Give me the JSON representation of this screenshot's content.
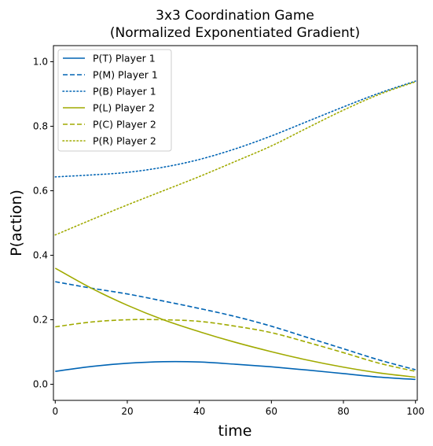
{
  "chart_data": {
    "type": "line",
    "title": "3x3 Coordination Game",
    "subtitle": "(Normalized Exponentiated Gradient)",
    "xlabel": "time",
    "ylabel": "P(action)",
    "xlim": [
      -0.5,
      100.5
    ],
    "ylim": [
      -0.05,
      1.05
    ],
    "xticks": [
      0,
      20,
      40,
      60,
      80,
      100
    ],
    "yticks": [
      0.0,
      0.2,
      0.4,
      0.6,
      0.8,
      1.0
    ],
    "xtick_labels": [
      "0",
      "20",
      "40",
      "60",
      "80",
      "100"
    ],
    "ytick_labels": [
      "0.0",
      "0.2",
      "0.4",
      "0.6",
      "0.8",
      "1.0"
    ],
    "grid": false,
    "legend_position": "top-left",
    "x": [
      0,
      10,
      20,
      30,
      40,
      50,
      60,
      70,
      80,
      90,
      100
    ],
    "series": [
      {
        "name": "P(T) Player 1",
        "color": "#0064b4",
        "dash": "solid",
        "values": [
          0.04,
          0.055,
          0.065,
          0.07,
          0.069,
          0.062,
          0.054,
          0.044,
          0.033,
          0.022,
          0.015
        ]
      },
      {
        "name": "P(M) Player 1",
        "color": "#0064b4",
        "dash": "dashed",
        "values": [
          0.318,
          0.298,
          0.28,
          0.258,
          0.235,
          0.21,
          0.18,
          0.145,
          0.11,
          0.075,
          0.045
        ]
      },
      {
        "name": "P(B) Player 1",
        "color": "#0064b4",
        "dash": "dotted",
        "values": [
          0.643,
          0.649,
          0.657,
          0.673,
          0.697,
          0.73,
          0.77,
          0.815,
          0.86,
          0.903,
          0.94
        ]
      },
      {
        "name": "P(L) Player 2",
        "color": "#a0aa00",
        "dash": "solid",
        "values": [
          0.36,
          0.298,
          0.245,
          0.2,
          0.163,
          0.13,
          0.101,
          0.075,
          0.053,
          0.035,
          0.022
        ]
      },
      {
        "name": "P(C) Player 2",
        "color": "#a0aa00",
        "dash": "dashed",
        "values": [
          0.178,
          0.193,
          0.2,
          0.2,
          0.195,
          0.18,
          0.16,
          0.13,
          0.098,
          0.065,
          0.04
        ]
      },
      {
        "name": "P(R) Player 2",
        "color": "#a0aa00",
        "dash": "dotted",
        "values": [
          0.463,
          0.51,
          0.556,
          0.6,
          0.644,
          0.691,
          0.739,
          0.795,
          0.85,
          0.899,
          0.938
        ]
      }
    ]
  }
}
